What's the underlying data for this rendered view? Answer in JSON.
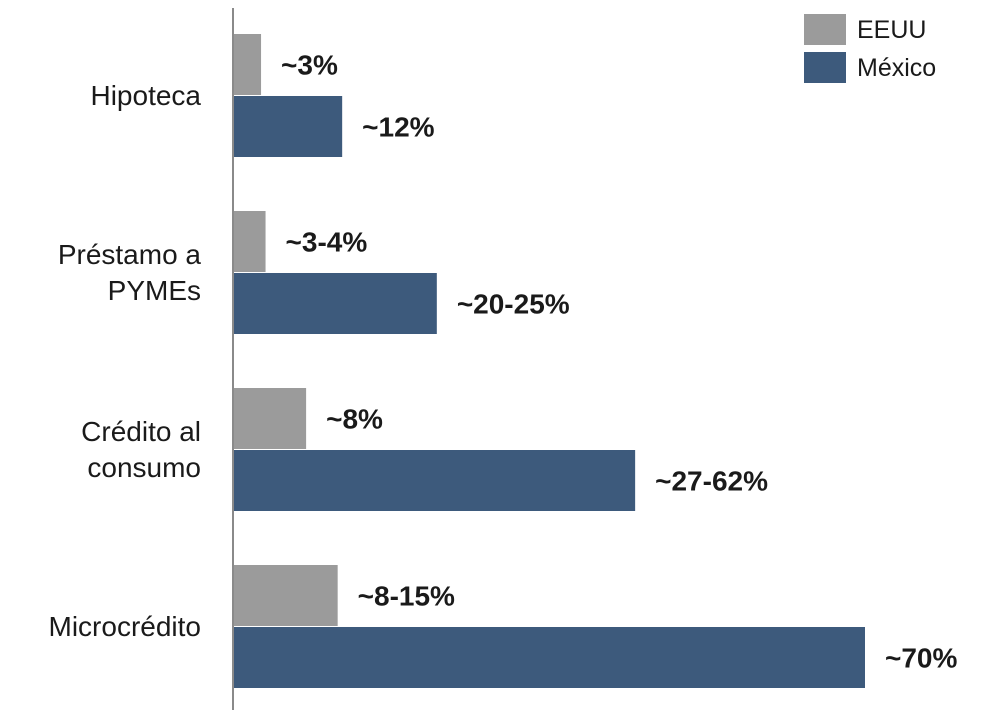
{
  "chart_data": {
    "type": "bar",
    "orientation": "horizontal",
    "title": "",
    "xlabel": "",
    "ylabel": "",
    "categories": [
      [
        "Hipoteca"
      ],
      [
        "Préstamo a",
        "PYMEs"
      ],
      [
        "Crédito al",
        "consumo"
      ],
      [
        "Microcrédito"
      ]
    ],
    "series": [
      {
        "name": "EEUU",
        "color": "#9b9b9b",
        "values": [
          3,
          3.5,
          8,
          11.5
        ],
        "labels": [
          "~3%",
          "~3-4%",
          "~8%",
          "~8-15%"
        ]
      },
      {
        "name": "México",
        "color": "#3d5a7c",
        "values": [
          12,
          22.5,
          44.5,
          70
        ],
        "labels": [
          "~12%",
          "~20-25%",
          "~27-62%",
          "~70%"
        ]
      }
    ],
    "xlim": [
      0,
      70
    ],
    "grid": false,
    "legend_position": "top-right"
  }
}
